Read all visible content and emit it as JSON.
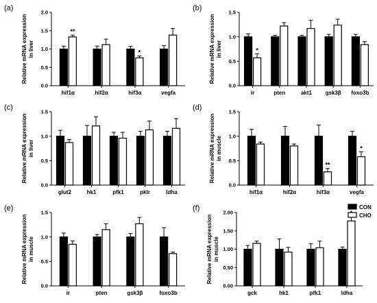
{
  "legend": {
    "items": [
      {
        "label": "CON",
        "color": "#000000",
        "filled": true
      },
      {
        "label": "CHO",
        "color": "#ffffff",
        "filled": false
      }
    ]
  },
  "chart_data": [
    {
      "panel_label": "(a)",
      "type": "bar",
      "ylabel_lines": [
        "Relative mRNA expression",
        "in liver"
      ],
      "ylim": [
        0,
        2.0
      ],
      "yticks": [
        "0.0",
        "0.5",
        "1.0",
        "1.5",
        "2.0"
      ],
      "categories": [
        "hif1α",
        "hif2α",
        "hif3α",
        "vegfa"
      ],
      "series": [
        {
          "name": "CON",
          "values": [
            1.0,
            1.0,
            1.0,
            1.0
          ],
          "errors": [
            0.08,
            0.08,
            0.07,
            0.09
          ]
        },
        {
          "name": "CHO",
          "values": [
            1.33,
            1.12,
            0.76,
            1.38
          ],
          "errors": [
            0.05,
            0.15,
            0.05,
            0.18
          ]
        }
      ],
      "significance": [
        "**",
        "",
        "*",
        ""
      ]
    },
    {
      "panel_label": "(b)",
      "type": "bar",
      "ylabel_lines": [
        "Relative mRNA expression",
        "in liver"
      ],
      "ylim": [
        0,
        1.5
      ],
      "yticks": [
        "0.0",
        "0.5",
        "1.0",
        "1.5"
      ],
      "categories": [
        "ir",
        "pten",
        "akt1",
        "gsk3β",
        "foxo3b"
      ],
      "series": [
        {
          "name": "CON",
          "values": [
            1.0,
            1.0,
            1.0,
            1.0,
            1.0
          ],
          "errors": [
            0.06,
            0.03,
            0.03,
            0.05,
            0.05
          ]
        },
        {
          "name": "CHO",
          "values": [
            0.57,
            1.22,
            1.17,
            1.24,
            0.84
          ],
          "errors": [
            0.08,
            0.07,
            0.17,
            0.12,
            0.06
          ]
        }
      ],
      "significance": [
        "*",
        "",
        "",
        "",
        ""
      ]
    },
    {
      "panel_label": "(c)",
      "type": "bar",
      "ylabel_lines": [
        "Relative mRNA expression",
        "in liver"
      ],
      "ylim": [
        0,
        1.5
      ],
      "yticks": [
        "0.0",
        "0.5",
        "1.0",
        "1.5"
      ],
      "categories": [
        "glut2",
        "hk1",
        "pfk1",
        "pklr",
        "ldha"
      ],
      "series": [
        {
          "name": "CON",
          "values": [
            1.0,
            1.0,
            1.0,
            1.0,
            1.0
          ],
          "errors": [
            0.12,
            0.22,
            0.08,
            0.1,
            0.1
          ]
        },
        {
          "name": "CHO",
          "values": [
            0.87,
            1.21,
            0.96,
            1.13,
            1.16
          ],
          "errors": [
            0.06,
            0.19,
            0.12,
            0.18,
            0.2
          ]
        }
      ],
      "significance": [
        "",
        "",
        "",
        "",
        ""
      ]
    },
    {
      "panel_label": "(d)",
      "type": "bar",
      "ylabel_lines": [
        "Relative mRNA expression",
        "in muscle"
      ],
      "ylim": [
        0,
        1.5
      ],
      "yticks": [
        "0.0",
        "0.5",
        "1.0",
        "1.5"
      ],
      "categories": [
        "hif1α",
        "hif2α",
        "hif3α",
        "vegfa"
      ],
      "series": [
        {
          "name": "CON",
          "values": [
            1.0,
            1.0,
            1.0,
            1.0
          ],
          "errors": [
            0.14,
            0.2,
            0.23,
            0.1
          ]
        },
        {
          "name": "CHO",
          "values": [
            0.84,
            0.8,
            0.27,
            0.58
          ],
          "errors": [
            0.04,
            0.04,
            0.07,
            0.1
          ]
        }
      ],
      "significance": [
        "",
        "",
        "**",
        "*"
      ]
    },
    {
      "panel_label": "(e)",
      "type": "bar",
      "ylabel_lines": [
        "Relative mRNA expression",
        "in muscle"
      ],
      "ylim": [
        0,
        1.5
      ],
      "yticks": [
        "0.0",
        "0.5",
        "1.0",
        "1.5"
      ],
      "categories": [
        "ir",
        "pten",
        "gsk3β",
        "foxo3b"
      ],
      "series": [
        {
          "name": "CON",
          "values": [
            1.0,
            1.0,
            1.0,
            1.0
          ],
          "errors": [
            0.08,
            0.05,
            0.07,
            0.19
          ]
        },
        {
          "name": "CHO",
          "values": [
            0.85,
            1.15,
            1.27,
            0.66
          ],
          "errors": [
            0.07,
            0.12,
            0.13,
            0.03
          ]
        }
      ],
      "significance": [
        "",
        "",
        "",
        ""
      ]
    },
    {
      "panel_label": "(f)",
      "type": "bar",
      "ylabel_lines": [
        "Relative mRNA expression",
        "in muscle"
      ],
      "ylim": [
        0,
        2.0
      ],
      "yticks": [
        "0.00",
        "0.50",
        "1.00",
        "1.50",
        "2.00"
      ],
      "categories": [
        "gck",
        "hk1",
        "pfk1",
        "ldha"
      ],
      "series": [
        {
          "name": "CON",
          "values": [
            1.0,
            1.0,
            1.0,
            1.0
          ],
          "errors": [
            0.1,
            0.28,
            0.15,
            0.06
          ]
        },
        {
          "name": "CHO",
          "values": [
            1.16,
            0.92,
            1.04,
            1.77
          ],
          "errors": [
            0.06,
            0.13,
            0.18,
            0.12
          ]
        }
      ],
      "significance": [
        "",
        "",
        "",
        "*"
      ]
    }
  ]
}
